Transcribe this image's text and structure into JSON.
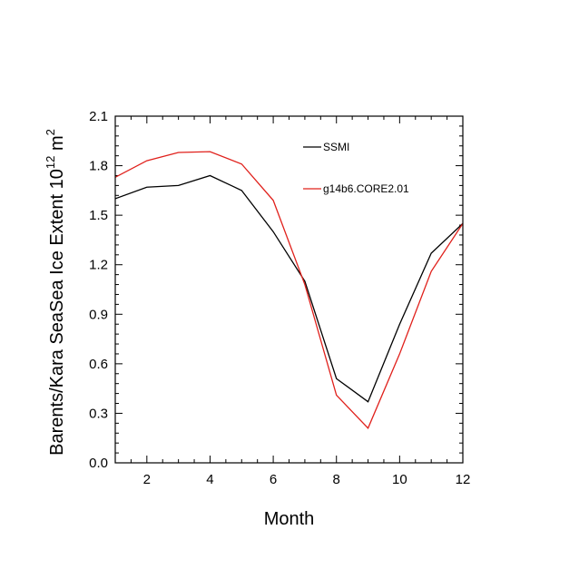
{
  "chart_data": {
    "type": "line",
    "title": "",
    "xlabel": "Month",
    "ylabel": {
      "main": "Barents/Kara SeaSea Ice Extent 10",
      "superscript": "12",
      "unit": " m",
      "unit_superscript": "2"
    },
    "xlim": [
      1,
      12
    ],
    "ylim": [
      0,
      2.1
    ],
    "xticks": [
      2,
      4,
      6,
      8,
      10,
      12
    ],
    "xtick_labels": [
      "2",
      "4",
      "6",
      "8",
      "10",
      "12"
    ],
    "yticks": [
      0,
      0.3,
      0.6,
      0.9,
      1.2,
      1.5,
      1.8,
      2.1
    ],
    "ytick_labels": [
      "0.0",
      "0.3",
      "0.6",
      "0.9",
      "1.2",
      "1.5",
      "1.8",
      "2.1"
    ],
    "grid": false,
    "legend_position": "top-right",
    "x": [
      1,
      2,
      3,
      4,
      5,
      6,
      7,
      8,
      9,
      10,
      11,
      12
    ],
    "series": [
      {
        "name": "SSMI",
        "color": "#000000",
        "values": [
          1.6,
          1.67,
          1.68,
          1.74,
          1.65,
          1.4,
          1.1,
          0.51,
          0.37,
          0.84,
          1.27,
          1.45
        ]
      },
      {
        "name": "g14b6.CORE2.01",
        "color": "#e0201b",
        "values": [
          1.73,
          1.83,
          1.88,
          1.885,
          1.81,
          1.59,
          1.08,
          0.41,
          0.21,
          0.66,
          1.16,
          1.45
        ]
      }
    ]
  }
}
